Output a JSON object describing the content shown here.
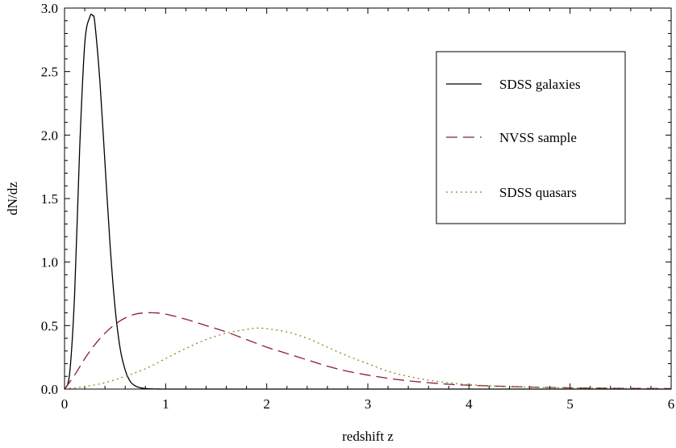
{
  "chart_data": {
    "type": "line",
    "title": "",
    "xlabel": "redshift z",
    "ylabel": "dN/dz",
    "xlim": [
      0,
      6
    ],
    "ylim": [
      0,
      3.0
    ],
    "xticks": [
      0,
      1,
      2,
      3,
      4,
      5,
      6
    ],
    "yticks": [
      0.0,
      0.5,
      1.0,
      1.5,
      2.0,
      2.5,
      3.0
    ],
    "xtick_labels": [
      "0",
      "1",
      "2",
      "3",
      "4",
      "5",
      "6"
    ],
    "ytick_labels": [
      "0.0",
      "0.5",
      "1.0",
      "1.5",
      "2.0",
      "2.5",
      "3.0"
    ],
    "grid": false,
    "legend_position": "top-right",
    "series": [
      {
        "name": "SDSS galaxies",
        "color": "#000000",
        "style": "solid",
        "x": [
          0,
          0.05,
          0.1,
          0.15,
          0.2,
          0.25,
          0.28,
          0.3,
          0.35,
          0.4,
          0.45,
          0.5,
          0.55,
          0.6,
          0.65,
          0.7,
          0.75,
          0.8,
          0.9,
          1.0,
          1.5,
          2,
          3,
          4,
          5,
          6
        ],
        "y": [
          0,
          0.12,
          0.75,
          1.9,
          2.72,
          2.93,
          2.94,
          2.88,
          2.42,
          1.78,
          1.14,
          0.64,
          0.32,
          0.15,
          0.06,
          0.025,
          0.01,
          0.004,
          0.001,
          0.0,
          0.0,
          0.0,
          0.0,
          0.0,
          0.0,
          0.0
        ]
      },
      {
        "name": "NVSS sample",
        "color": "#8b1a4a",
        "style": "dashed",
        "x": [
          0,
          0.1,
          0.2,
          0.3,
          0.4,
          0.5,
          0.6,
          0.7,
          0.8,
          0.9,
          1.0,
          1.2,
          1.4,
          1.6,
          1.8,
          2.0,
          2.2,
          2.4,
          2.6,
          2.8,
          3.0,
          3.2,
          3.4,
          3.6,
          3.8,
          4.0,
          4.5,
          5.0,
          5.5,
          6.0
        ],
        "y": [
          0,
          0.11,
          0.24,
          0.35,
          0.44,
          0.51,
          0.56,
          0.59,
          0.6,
          0.6,
          0.59,
          0.55,
          0.5,
          0.45,
          0.39,
          0.33,
          0.28,
          0.23,
          0.18,
          0.14,
          0.11,
          0.085,
          0.065,
          0.05,
          0.038,
          0.03,
          0.018,
          0.01,
          0.006,
          0.004
        ]
      },
      {
        "name": "SDSS quasars",
        "color": "#7f8f1f",
        "style": "dotted",
        "x": [
          0,
          0.2,
          0.4,
          0.6,
          0.8,
          1.0,
          1.2,
          1.4,
          1.6,
          1.8,
          1.9,
          2.0,
          2.2,
          2.4,
          2.6,
          2.8,
          3.0,
          3.2,
          3.4,
          3.6,
          3.8,
          4.0,
          4.4,
          4.8,
          5.2,
          5.6,
          6.0
        ],
        "y": [
          0.0,
          0.02,
          0.05,
          0.1,
          0.16,
          0.24,
          0.32,
          0.39,
          0.44,
          0.47,
          0.48,
          0.475,
          0.45,
          0.4,
          0.33,
          0.26,
          0.2,
          0.14,
          0.1,
          0.07,
          0.05,
          0.035,
          0.02,
          0.012,
          0.007,
          0.004,
          0.002
        ]
      }
    ]
  }
}
